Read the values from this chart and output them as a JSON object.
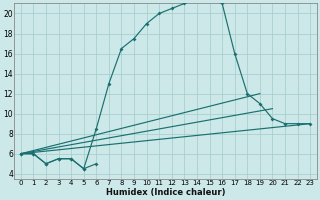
{
  "xlabel": "Humidex (Indice chaleur)",
  "background_color": "#cce8e8",
  "line_color": "#1a7070",
  "xlim": [
    -0.5,
    23.5
  ],
  "ylim": [
    3.5,
    21.0
  ],
  "xticks": [
    0,
    1,
    2,
    3,
    4,
    5,
    6,
    7,
    8,
    9,
    10,
    11,
    12,
    13,
    14,
    15,
    16,
    17,
    18,
    19,
    20,
    21,
    22,
    23
  ],
  "yticks": [
    4,
    6,
    8,
    10,
    12,
    14,
    16,
    18,
    20
  ],
  "grid_color": "#aacece",
  "main_x": [
    0,
    1,
    2,
    3,
    4,
    5,
    6,
    7,
    8,
    9,
    10,
    11,
    12,
    13,
    14,
    15,
    16,
    17,
    18,
    19,
    20,
    21,
    22,
    23
  ],
  "main_y": [
    6,
    6,
    5,
    5.5,
    5.5,
    4.5,
    8.5,
    13,
    16.5,
    17.5,
    19,
    20,
    20.5,
    21,
    21.5,
    21.5,
    21,
    16,
    12,
    11,
    9.5,
    9,
    9,
    9
  ],
  "line2_x": [
    0,
    23
  ],
  "line2_y": [
    6,
    9
  ],
  "line3_x": [
    0,
    20
  ],
  "line3_y": [
    6,
    10.5
  ],
  "line4_x": [
    0,
    19
  ],
  "line4_y": [
    6,
    12
  ],
  "zigzag_x": [
    0,
    1,
    2,
    3,
    4,
    5,
    6
  ],
  "zigzag_y": [
    6,
    6,
    5,
    5.5,
    5.5,
    4.5,
    5
  ]
}
